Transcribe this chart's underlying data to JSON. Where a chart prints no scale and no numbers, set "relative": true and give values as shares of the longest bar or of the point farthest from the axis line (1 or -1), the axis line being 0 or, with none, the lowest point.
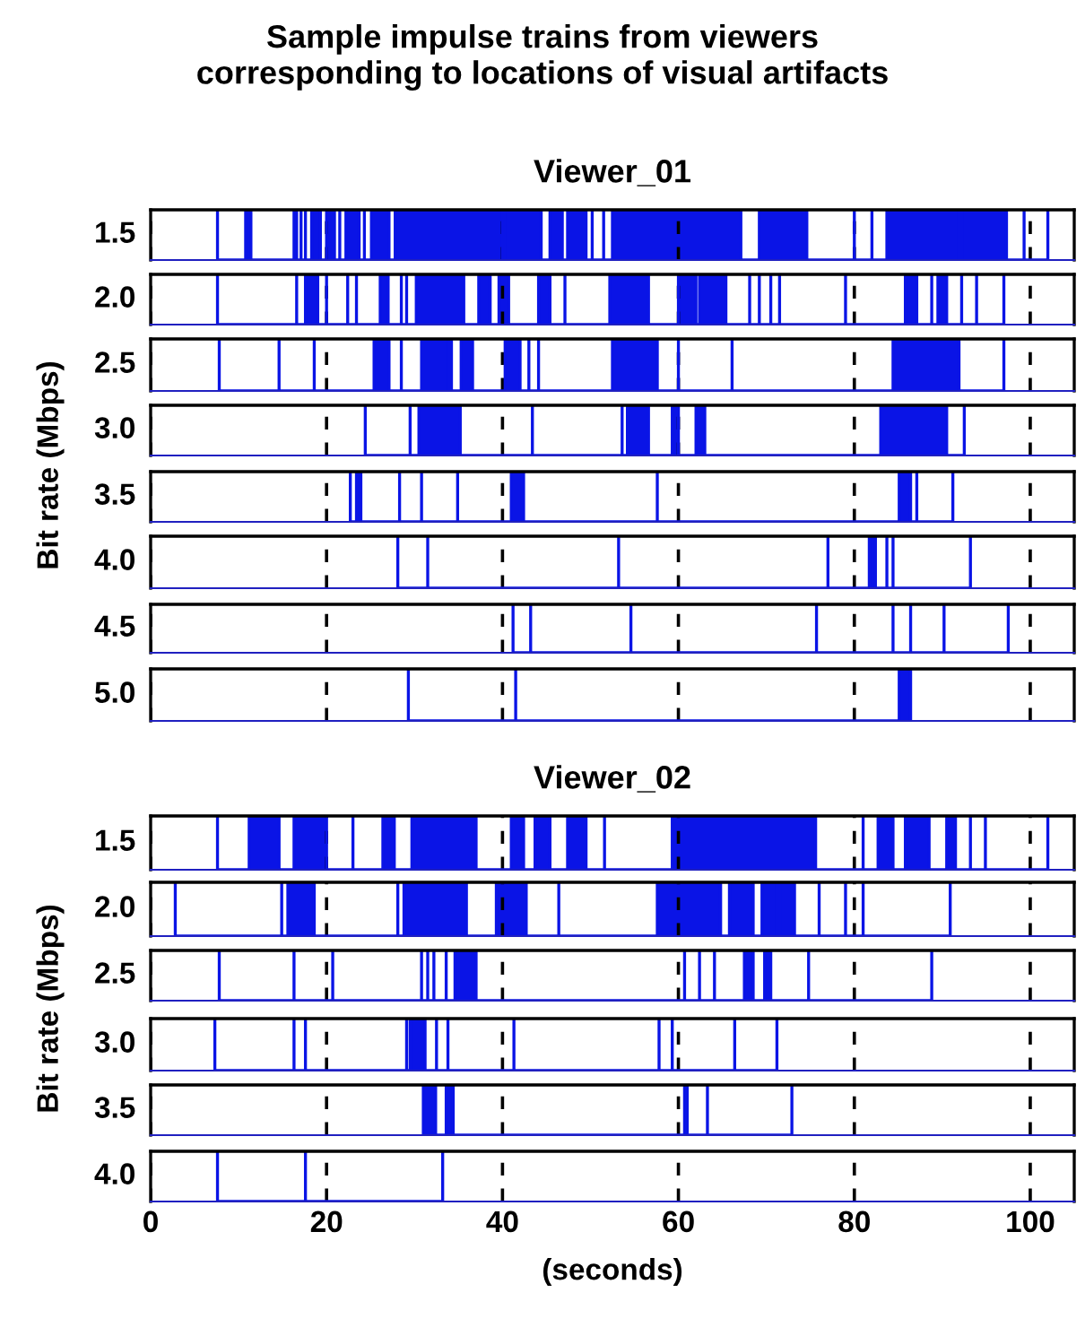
{
  "chart_data": [
    {
      "type": "area",
      "title": "Sample impulse trains from viewers\ncorresponding to locations of visual artifacts",
      "subtitle": "Viewer_01",
      "ylabel": "1.5",
      "relative": true,
      "color": "#0a14e6",
      "x": [
        7.6,
        7.6,
        7.6,
        10.8,
        10.8,
        11.4,
        11.4,
        16.3,
        16.3,
        16.6,
        16.6,
        17.1,
        17.1,
        17.1,
        17.6,
        17.6,
        17.6,
        18.3,
        18.3,
        19.3,
        19.3,
        20,
        20,
        20.9,
        20.9,
        21.5,
        21.5,
        21.5,
        22.2,
        22.2,
        23.7,
        23.7,
        24.3,
        24.3,
        24.3,
        25.1,
        25.1,
        27.1,
        27.1,
        27.8,
        27.8,
        40,
        40,
        40.3,
        40.3,
        44.4,
        44.4,
        45.4,
        45.4,
        46.8,
        46.8,
        47.4,
        47.4,
        49.5,
        49.5,
        50.2,
        50.2,
        50.2,
        51.5,
        51.5,
        51.5,
        52.5,
        52.5,
        67.1,
        67.1,
        69.2,
        69.2,
        74.6,
        74.6,
        80,
        80,
        80,
        82,
        82,
        82,
        83.7,
        83.7,
        91.9,
        91.9,
        92.2,
        92.2,
        97.3,
        97.3,
        99.3,
        99.3,
        99.3,
        102,
        102,
        102
      ],
      "values": [
        0,
        1,
        0,
        0,
        1,
        1,
        0,
        0,
        1,
        1,
        0,
        0,
        1,
        0,
        0,
        1,
        0,
        0,
        1,
        1,
        0,
        0,
        1,
        1,
        0,
        0,
        1,
        0,
        0,
        1,
        1,
        0,
        0,
        1,
        0,
        0,
        1,
        1,
        0,
        0,
        1,
        1,
        0,
        0,
        1,
        1,
        0,
        0,
        1,
        1,
        0,
        0,
        1,
        1,
        0,
        0,
        1,
        0,
        0,
        1,
        0,
        0,
        1,
        1,
        0,
        0,
        1,
        1,
        0,
        0,
        1,
        0,
        0,
        1,
        0,
        0,
        1,
        1,
        0,
        0,
        1,
        1,
        0,
        0,
        1,
        0,
        0,
        1,
        0
      ],
      "xlim": [
        0,
        105
      ],
      "xticks": [
        0,
        20,
        40,
        60,
        80,
        100
      ],
      "grid": "x",
      "tick_labels": false
    },
    {
      "type": "area",
      "ylabel": "2.0",
      "relative": true,
      "color": "#0a14e6",
      "x": [
        7.6,
        7.6,
        7.6,
        16.6,
        16.6,
        16.6,
        17.6,
        17.6,
        19,
        19,
        20,
        20,
        20,
        22.4,
        22.4,
        22.4,
        23.4,
        23.4,
        23.4,
        26.1,
        26.1,
        27,
        27,
        28.5,
        28.5,
        28.5,
        29.1,
        29.1,
        29.1,
        30.2,
        30.2,
        35.6,
        35.6,
        37.3,
        37.3,
        38.6,
        38.6,
        39.6,
        39.6,
        40.7,
        40.7,
        44.1,
        44.1,
        45.4,
        45.4,
        47.1,
        47.1,
        47.1,
        52.2,
        52.2,
        56.6,
        56.6,
        60,
        60,
        62,
        62,
        62.4,
        62.4,
        65.4,
        65.4,
        68.1,
        68.1,
        68.1,
        69.2,
        69.2,
        69.2,
        70.5,
        70.5,
        70.5,
        71.5,
        71.5,
        71.5,
        79,
        79,
        79,
        85.8,
        85.8,
        87.1,
        87.1,
        88.8,
        88.8,
        88.8,
        89.5,
        89.5,
        90.5,
        90.5,
        92.2,
        92.2,
        92.2,
        93.9,
        93.9,
        93.9,
        97,
        97,
        97
      ],
      "values": [
        0,
        1,
        0,
        0,
        1,
        0,
        0,
        1,
        1,
        0,
        0,
        1,
        0,
        0,
        1,
        0,
        0,
        1,
        0,
        0,
        1,
        1,
        0,
        0,
        1,
        0,
        0,
        1,
        0,
        0,
        1,
        1,
        0,
        0,
        1,
        1,
        0,
        0,
        1,
        1,
        0,
        0,
        1,
        1,
        0,
        0,
        1,
        0,
        0,
        1,
        1,
        0,
        0,
        1,
        1,
        0,
        0,
        1,
        1,
        0,
        0,
        1,
        0,
        0,
        1,
        0,
        0,
        1,
        0,
        0,
        1,
        0,
        0,
        1,
        0,
        0,
        1,
        1,
        0,
        0,
        1,
        0,
        0,
        1,
        1,
        0,
        0,
        1,
        0,
        0,
        1,
        0,
        0,
        1,
        0
      ],
      "xlim": [
        0,
        105
      ],
      "xticks": [
        0,
        20,
        40,
        60,
        80,
        100
      ],
      "grid": "x",
      "tick_labels": false
    },
    {
      "type": "area",
      "ylabel": "2.5",
      "relative": true,
      "color": "#0a14e6",
      "x": [
        7.8,
        7.8,
        7.8,
        14.6,
        14.6,
        14.6,
        18.6,
        18.6,
        18.6,
        25.4,
        25.4,
        27.1,
        27.1,
        28.5,
        28.5,
        28.5,
        30.8,
        30.8,
        33.9,
        33.9,
        34.2,
        34.2,
        34.2,
        35.3,
        35.3,
        36.6,
        36.6,
        40.3,
        40.3,
        42,
        42,
        43,
        43,
        43,
        44.1,
        44.1,
        44.1,
        52.5,
        52.5,
        57.6,
        57.6,
        60,
        60,
        60,
        66.1,
        66.1,
        66.1,
        84.4,
        84.4,
        91.9,
        91.9,
        97,
        97,
        97
      ],
      "values": [
        0,
        1,
        0,
        0,
        1,
        0,
        0,
        1,
        0,
        0,
        1,
        1,
        0,
        0,
        1,
        0,
        0,
        1,
        1,
        0,
        0,
        1,
        0,
        0,
        1,
        1,
        0,
        0,
        1,
        1,
        0,
        0,
        1,
        0,
        0,
        1,
        0,
        0,
        1,
        1,
        0,
        0,
        1,
        0,
        0,
        1,
        0,
        0,
        1,
        1,
        0,
        0,
        1,
        0
      ],
      "xlim": [
        0,
        105
      ],
      "xticks": [
        0,
        20,
        40,
        60,
        80,
        100
      ],
      "grid": "x",
      "tick_labels": false
    },
    {
      "type": "area",
      "ylabel": "3.0",
      "annotations": [
        "Bit rate (Mbps)"
      ],
      "relative": true,
      "color": "#0a14e6",
      "x": [
        24.4,
        24.4,
        24.4,
        29.5,
        29.5,
        29.5,
        30.5,
        30.5,
        35.2,
        35.2,
        43.4,
        43.4,
        43.4,
        53.6,
        53.6,
        53.6,
        54.2,
        54.2,
        56.6,
        56.6,
        59.3,
        59.3,
        60,
        60,
        62,
        62,
        63,
        63,
        83,
        83,
        90.5,
        90.5,
        92.5,
        92.5,
        92.5
      ],
      "values": [
        0,
        1,
        0,
        0,
        1,
        0,
        0,
        1,
        1,
        0,
        0,
        1,
        0,
        0,
        1,
        0,
        0,
        1,
        1,
        0,
        0,
        1,
        1,
        0,
        0,
        1,
        1,
        0,
        0,
        1,
        1,
        0,
        0,
        1,
        0
      ],
      "xlim": [
        0,
        105
      ],
      "xticks": [
        0,
        20,
        40,
        60,
        80,
        100
      ],
      "grid": "x",
      "tick_labels": false
    },
    {
      "type": "area",
      "ylabel": "3.5",
      "relative": true,
      "color": "#0a14e6",
      "x": [
        22.7,
        22.7,
        22.7,
        23.4,
        23.4,
        23.9,
        23.9,
        28.3,
        28.3,
        28.3,
        30.8,
        30.8,
        30.8,
        34.9,
        34.9,
        34.9,
        41,
        41,
        42.4,
        42.4,
        57.6,
        57.6,
        57.6,
        85.1,
        85.1,
        86.4,
        86.4,
        87.1,
        87.1,
        87.1,
        91.2,
        91.2,
        91.2
      ],
      "values": [
        0,
        1,
        0,
        0,
        1,
        1,
        0,
        0,
        1,
        0,
        0,
        1,
        0,
        0,
        1,
        0,
        0,
        1,
        1,
        0,
        0,
        1,
        0,
        0,
        1,
        1,
        0,
        0,
        1,
        0,
        0,
        1,
        0
      ],
      "xlim": [
        0,
        105
      ],
      "xticks": [
        0,
        20,
        40,
        60,
        80,
        100
      ],
      "grid": "x",
      "tick_labels": false
    },
    {
      "type": "area",
      "ylabel": "4.0",
      "relative": true,
      "color": "#0a14e6",
      "x": [
        28.1,
        28.1,
        28.1,
        31.5,
        31.5,
        31.5,
        53.2,
        53.2,
        53.2,
        77,
        77,
        77,
        81.7,
        81.7,
        82.4,
        82.4,
        83.7,
        83.7,
        83.7,
        84.4,
        84.4,
        84.4,
        93.2,
        93.2,
        93.2
      ],
      "values": [
        0,
        1,
        0,
        0,
        1,
        0,
        0,
        1,
        0,
        0,
        1,
        0,
        0,
        1,
        1,
        0,
        0,
        1,
        0,
        0,
        1,
        0,
        0,
        1,
        0
      ],
      "xlim": [
        0,
        105
      ],
      "xticks": [
        0,
        20,
        40,
        60,
        80,
        100
      ],
      "grid": "x",
      "tick_labels": false
    },
    {
      "type": "line",
      "ylabel": "4.5",
      "relative": true,
      "color": "#0a14e6",
      "x": [
        41.2,
        41.2,
        41.2,
        43.2,
        43.2,
        43.2,
        54.6,
        54.6,
        54.6,
        75.7,
        75.7,
        75.7,
        84.4,
        84.4,
        84.4,
        86.4,
        86.4,
        86.4,
        90.2,
        90.2,
        90.2,
        97.5,
        97.5,
        97.5
      ],
      "values": [
        0,
        1,
        0,
        0,
        1,
        0,
        0,
        1,
        0,
        0,
        1,
        0,
        0,
        1,
        0,
        0,
        1,
        0,
        0,
        1,
        0,
        0,
        1,
        0
      ],
      "xlim": [
        0,
        105
      ],
      "xticks": [
        0,
        20,
        40,
        60,
        80,
        100
      ],
      "grid": "x",
      "tick_labels": false
    },
    {
      "type": "area",
      "ylabel": "5.0",
      "relative": true,
      "color": "#0a14e6",
      "x": [
        29.3,
        29.3,
        29.3,
        41.5,
        41.5,
        41.5,
        85.1,
        85.1,
        86.4,
        86.4
      ],
      "values": [
        0,
        1,
        0,
        0,
        1,
        0,
        0,
        1,
        1,
        0
      ],
      "xlim": [
        0,
        105
      ],
      "xticks": [
        0,
        20,
        40,
        60,
        80,
        100
      ],
      "grid": "x",
      "tick_labels": false
    },
    {
      "type": "area",
      "subtitle": "Viewer_02",
      "ylabel": "1.5",
      "relative": true,
      "color": "#0a14e6",
      "x": [
        7.6,
        7.6,
        7.6,
        11.2,
        11.2,
        14.6,
        14.6,
        16.3,
        16.3,
        20,
        20,
        23,
        23,
        23,
        26.4,
        26.4,
        27.7,
        27.7,
        29.7,
        29.7,
        37,
        37,
        41,
        41,
        42.4,
        42.4,
        43.7,
        43.7,
        45.4,
        45.4,
        47.4,
        47.4,
        49.5,
        49.5,
        51.6,
        51.6,
        51.6,
        59.3,
        59.3,
        75.6,
        75.6,
        81,
        81,
        81,
        82.7,
        82.7,
        84.4,
        84.4,
        85.8,
        85.8,
        88.5,
        88.5,
        90.5,
        90.5,
        91.5,
        91.5,
        93.2,
        93.2,
        93.2,
        94.9,
        94.9,
        94.9,
        102,
        102,
        102
      ],
      "values": [
        0,
        1,
        0,
        0,
        1,
        1,
        0,
        0,
        1,
        1,
        0,
        0,
        1,
        0,
        0,
        1,
        1,
        0,
        0,
        1,
        1,
        0,
        0,
        1,
        1,
        0,
        0,
        1,
        1,
        0,
        0,
        1,
        1,
        0,
        0,
        1,
        0,
        0,
        1,
        1,
        0,
        0,
        1,
        0,
        0,
        1,
        1,
        0,
        0,
        1,
        1,
        0,
        0,
        1,
        1,
        0,
        0,
        1,
        0,
        0,
        1,
        0,
        0,
        1,
        0
      ],
      "xlim": [
        0,
        105
      ],
      "xticks": [
        0,
        20,
        40,
        60,
        80,
        100
      ],
      "grid": "x",
      "tick_labels": false
    },
    {
      "type": "area",
      "ylabel": "2.0",
      "relative": true,
      "color": "#0a14e6",
      "x": [
        2.8,
        2.8,
        2.8,
        14.9,
        14.9,
        14.9,
        15.6,
        15.6,
        18.6,
        18.6,
        28.1,
        28.1,
        28.1,
        28.8,
        28.8,
        35.9,
        35.9,
        39.3,
        39.3,
        42.7,
        42.7,
        46.4,
        46.4,
        46.4,
        57.6,
        57.6,
        64.8,
        64.8,
        65.8,
        65.8,
        68.5,
        68.5,
        69.5,
        69.5,
        71.2,
        71.2,
        71.5,
        71.5,
        73.2,
        73.2,
        76,
        76,
        76,
        79,
        79,
        79,
        81,
        81,
        81,
        90.9,
        90.9,
        90.9
      ],
      "values": [
        0,
        1,
        0,
        0,
        1,
        0,
        0,
        1,
        1,
        0,
        0,
        1,
        0,
        0,
        1,
        1,
        0,
        0,
        1,
        1,
        0,
        0,
        1,
        0,
        0,
        1,
        1,
        0,
        0,
        1,
        1,
        0,
        0,
        1,
        1,
        0,
        0,
        1,
        1,
        0,
        0,
        1,
        0,
        0,
        1,
        0,
        0,
        1,
        0,
        0,
        1,
        0
      ],
      "xlim": [
        0,
        105
      ],
      "xticks": [
        0,
        20,
        40,
        60,
        80,
        100
      ],
      "grid": "x",
      "tick_labels": false
    },
    {
      "type": "area",
      "ylabel": "2.5",
      "relative": true,
      "color": "#0a14e6",
      "x": [
        7.8,
        7.8,
        7.8,
        16.3,
        16.3,
        16.3,
        20.7,
        20.7,
        20.7,
        30.8,
        30.8,
        30.8,
        31.5,
        31.5,
        31.5,
        32.2,
        32.2,
        32.2,
        33.6,
        33.6,
        33.6,
        34.6,
        34.6,
        37,
        37,
        60.7,
        60.7,
        60.7,
        62.4,
        62.4,
        62.4,
        64.1,
        64.1,
        64.1,
        67.5,
        67.5,
        68.5,
        68.5,
        69.8,
        69.8,
        70.5,
        70.5,
        74.8,
        74.8,
        74.8,
        88.8,
        88.8,
        88.8
      ],
      "values": [
        0,
        1,
        0,
        0,
        1,
        0,
        0,
        1,
        0,
        0,
        1,
        0,
        0,
        1,
        0,
        0,
        1,
        0,
        0,
        1,
        0,
        0,
        1,
        1,
        0,
        0,
        1,
        0,
        0,
        1,
        0,
        0,
        1,
        0,
        0,
        1,
        1,
        0,
        0,
        1,
        1,
        0,
        0,
        1,
        0,
        0,
        1,
        0
      ],
      "xlim": [
        0,
        105
      ],
      "xticks": [
        0,
        20,
        40,
        60,
        80,
        100
      ],
      "grid": "x",
      "tick_labels": false
    },
    {
      "type": "area",
      "ylabel": "3.0",
      "annotations": [
        "Bit rate (Mbps)"
      ],
      "relative": true,
      "color": "#0a14e6",
      "x": [
        7.3,
        7.3,
        7.3,
        16.3,
        16.3,
        16.3,
        17.6,
        17.6,
        17.6,
        29.1,
        29.1,
        29.1,
        29.5,
        29.5,
        31.2,
        31.2,
        32.5,
        32.5,
        32.5,
        33.8,
        33.8,
        33.8,
        41.3,
        41.3,
        41.3,
        57.8,
        57.8,
        57.8,
        59.3,
        59.3,
        59.3,
        66.4,
        66.4,
        66.4,
        71.2,
        71.2,
        71.2
      ],
      "values": [
        0,
        1,
        0,
        0,
        1,
        0,
        0,
        1,
        0,
        0,
        1,
        0,
        0,
        1,
        1,
        0,
        0,
        1,
        0,
        0,
        1,
        0,
        0,
        1,
        0,
        0,
        1,
        0,
        0,
        1,
        0,
        0,
        1,
        0,
        0,
        1,
        0
      ],
      "xlim": [
        0,
        105
      ],
      "xticks": [
        0,
        20,
        40,
        60,
        80,
        100
      ],
      "grid": "x",
      "tick_labels": false
    },
    {
      "type": "area",
      "ylabel": "3.5",
      "relative": true,
      "color": "#0a14e6",
      "x": [
        31,
        31,
        32.4,
        32.4,
        33.6,
        33.6,
        34.4,
        34.4,
        60.7,
        60.7,
        61,
        61,
        63.3,
        63.3,
        63.3,
        72.9,
        72.9,
        72.9
      ],
      "values": [
        0,
        1,
        1,
        0,
        0,
        1,
        1,
        0,
        0,
        1,
        1,
        0,
        0,
        1,
        0,
        0,
        1,
        0
      ],
      "xlim": [
        0,
        105
      ],
      "xticks": [
        0,
        20,
        40,
        60,
        80,
        100
      ],
      "grid": "x",
      "tick_labels": false
    },
    {
      "type": "line",
      "ylabel": "4.0",
      "xlabel": "(seconds)",
      "relative": true,
      "color": "#0a14e6",
      "x": [
        7.6,
        7.6,
        7.6,
        17.6,
        17.6,
        17.6,
        33.2,
        33.2,
        33.2
      ],
      "values": [
        0,
        1,
        0,
        0,
        1,
        0,
        0,
        1,
        0
      ],
      "xlim": [
        0,
        105
      ],
      "xticks": [
        0,
        20,
        40,
        60,
        80,
        100
      ],
      "grid": "x",
      "tick_labels": "x"
    }
  ]
}
